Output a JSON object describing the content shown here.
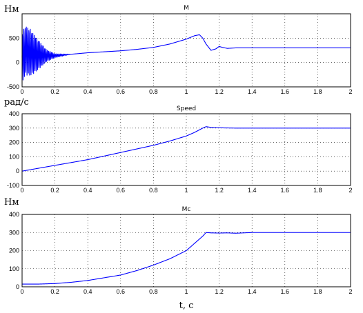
{
  "chart_data": [
    {
      "type": "line",
      "title": "M",
      "ylabel": "Нм",
      "xlim": [
        0,
        2
      ],
      "ylim": [
        -500,
        1000
      ],
      "yticks": [
        -500,
        0,
        500
      ],
      "xticks": [
        0,
        0.2,
        0.4,
        0.6,
        0.8,
        1,
        1.2,
        1.4,
        1.6,
        1.8,
        2
      ],
      "grid": true,
      "series": [
        {
          "color": "#0000ff",
          "x": [
            0,
            0.02,
            0.04,
            0.06,
            0.08,
            0.1,
            0.12,
            0.15,
            0.2,
            0.3,
            0.4,
            0.5,
            0.6,
            0.7,
            0.8,
            0.9,
            1.0,
            1.05,
            1.08,
            1.1,
            1.12,
            1.15,
            1.18,
            1.2,
            1.22,
            1.25,
            1.3,
            1.35,
            1.4,
            1.6,
            1.8,
            2.0
          ],
          "y": [
            100,
            250,
            220,
            190,
            170,
            160,
            150,
            140,
            140,
            170,
            200,
            220,
            240,
            270,
            310,
            380,
            480,
            550,
            570,
            500,
            380,
            250,
            280,
            330,
            310,
            290,
            300,
            300,
            300,
            300,
            300,
            300
          ],
          "oscillation": [
            {
              "x": 0,
              "amp": 520
            },
            {
              "x": 0.05,
              "amp": 480
            },
            {
              "x": 0.1,
              "amp": 300
            },
            {
              "x": 0.15,
              "amp": 120
            },
            {
              "x": 0.2,
              "amp": 40
            },
            {
              "x": 0.3,
              "amp": 0
            }
          ]
        }
      ]
    },
    {
      "type": "line",
      "title": "Speed",
      "ylabel": "рад/с",
      "xlim": [
        0,
        2
      ],
      "ylim": [
        -100,
        400
      ],
      "yticks": [
        -100,
        0,
        100,
        200,
        300,
        400
      ],
      "xticks": [
        0,
        0.2,
        0.4,
        0.6,
        0.8,
        1,
        1.2,
        1.4,
        1.6,
        1.8,
        2
      ],
      "grid": true,
      "series": [
        {
          "color": "#0000ff",
          "x": [
            0,
            0.1,
            0.2,
            0.3,
            0.4,
            0.5,
            0.6,
            0.7,
            0.8,
            0.9,
            1.0,
            1.05,
            1.1,
            1.12,
            1.15,
            1.2,
            1.3,
            1.4,
            1.6,
            1.8,
            2.0
          ],
          "y": [
            0,
            20,
            40,
            60,
            80,
            105,
            130,
            155,
            180,
            210,
            245,
            270,
            300,
            310,
            305,
            302,
            300,
            300,
            300,
            300,
            300
          ]
        }
      ]
    },
    {
      "type": "line",
      "title": "Mc",
      "ylabel": "Нм",
      "xlabel": "t, c",
      "xlim": [
        0,
        2
      ],
      "ylim": [
        0,
        400
      ],
      "yticks": [
        0,
        100,
        200,
        300,
        400
      ],
      "xticks": [
        0,
        0.2,
        0.4,
        0.6,
        0.8,
        1,
        1.2,
        1.4,
        1.6,
        1.8,
        2
      ],
      "grid": true,
      "series": [
        {
          "color": "#0000ff",
          "x": [
            0,
            0.1,
            0.2,
            0.3,
            0.4,
            0.5,
            0.6,
            0.7,
            0.8,
            0.9,
            1.0,
            1.05,
            1.1,
            1.12,
            1.15,
            1.2,
            1.25,
            1.3,
            1.4,
            1.6,
            1.8,
            2.0
          ],
          "y": [
            15,
            15,
            18,
            25,
            35,
            50,
            65,
            90,
            120,
            155,
            200,
            240,
            280,
            300,
            298,
            297,
            298,
            296,
            300,
            300,
            300,
            300
          ]
        }
      ]
    }
  ]
}
